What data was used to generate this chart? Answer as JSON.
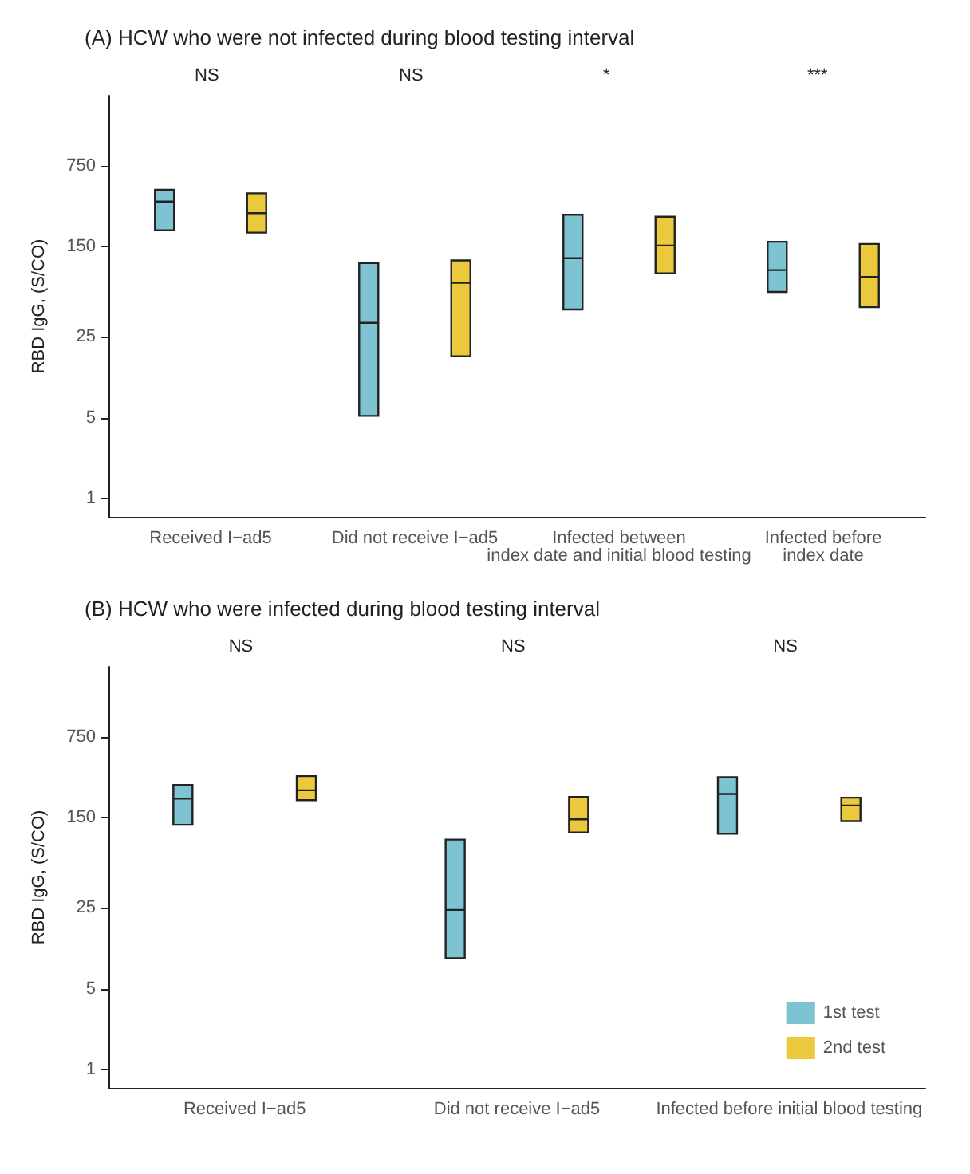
{
  "chart_data": [
    {
      "type": "box",
      "title": "(A) HCW who were not infected during blood testing interval",
      "ylabel": "RBD IgG, (S/CO)",
      "categories": [
        "Received I−ad5",
        "Did not receive I−ad5",
        "Infected between\nindex date and initial blood testing",
        "Infected before\nindex date"
      ],
      "log": "y",
      "ylim": [
        0.7,
        3000
      ],
      "yticks": [
        1,
        5,
        25,
        150,
        750
      ],
      "grid": false,
      "legend": false,
      "annotations": [
        "NS",
        "NS",
        "*",
        "***"
      ],
      "series": [
        {
          "color": "#7ec3d1",
          "boxes": [
            {
              "low": 207,
              "q1": 207,
              "median": 366,
              "q3": 464,
              "high": 464
            },
            {
              "low": 5.2,
              "q1": 5.2,
              "median": 33,
              "q3": 108,
              "high": 108
            },
            {
              "low": 43,
              "q1": 43,
              "median": 119,
              "q3": 282,
              "high": 282
            },
            {
              "low": 61,
              "q1": 61,
              "median": 94,
              "q3": 165,
              "high": 165
            }
          ]
        },
        {
          "color": "#ecc83c",
          "boxes": [
            {
              "low": 198,
              "q1": 198,
              "median": 291,
              "q3": 432,
              "high": 432
            },
            {
              "low": 17,
              "q1": 17,
              "median": 73,
              "q3": 114,
              "high": 114
            },
            {
              "low": 88,
              "q1": 88,
              "median": 153,
              "q3": 271,
              "high": 271
            },
            {
              "low": 45,
              "q1": 45,
              "median": 82,
              "q3": 158,
              "high": 158
            }
          ]
        }
      ]
    },
    {
      "type": "box",
      "title": "(B) HCW who were infected during blood testing interval",
      "ylabel": "RBD IgG, (S/CO)",
      "categories": [
        "Received I−ad5",
        "Did not receive I−ad5",
        "Infected before initial blood testing"
      ],
      "log": "y",
      "ylim": [
        0.7,
        3000
      ],
      "yticks": [
        1,
        5,
        25,
        150,
        750
      ],
      "grid": false,
      "legend": "bottom right",
      "annotations": [
        "NS",
        "NS",
        "NS"
      ],
      "series": [
        {
          "name": "1st test",
          "color": "#7ec3d1",
          "boxes": [
            {
              "low": 130,
              "q1": 130,
              "median": 219,
              "q3": 287,
              "high": 287
            },
            {
              "low": 9.2,
              "q1": 9.2,
              "median": 24,
              "q3": 97,
              "high": 97
            },
            {
              "low": 109,
              "q1": 109,
              "median": 240,
              "q3": 335,
              "high": 335
            }
          ]
        },
        {
          "name": "2nd test",
          "color": "#ecc83c",
          "boxes": [
            {
              "low": 212,
              "q1": 212,
              "median": 258,
              "q3": 342,
              "high": 342
            },
            {
              "low": 112,
              "q1": 112,
              "median": 145,
              "q3": 226,
              "high": 226
            },
            {
              "low": 140,
              "q1": 140,
              "median": 191,
              "q3": 223,
              "high": 223
            }
          ]
        }
      ]
    }
  ]
}
